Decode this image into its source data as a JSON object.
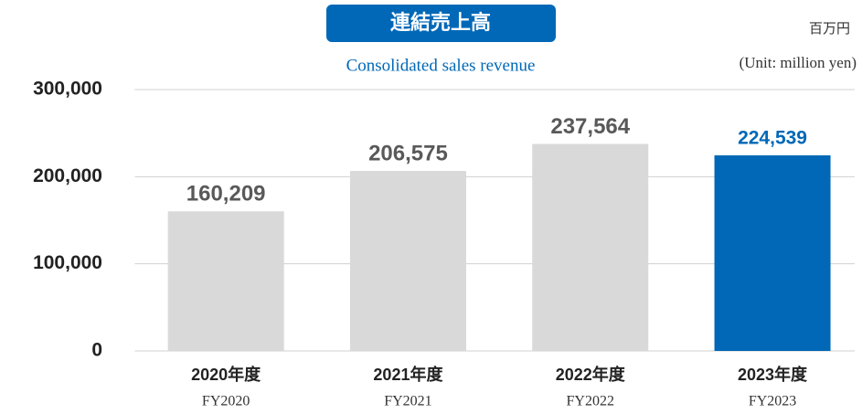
{
  "chart_data": {
    "type": "bar",
    "title": "連結売上高",
    "subtitle": "Consolidated sales revenue",
    "unit": "百万円",
    "unit_en": "(Unit: million yen)",
    "categories": [
      "2020年度",
      "2021年度",
      "2022年度",
      "2023年度"
    ],
    "categories_en": [
      "FY2020",
      "FY2021",
      "FY2022",
      "FY2023"
    ],
    "values": [
      160209,
      206575,
      237564,
      224539
    ],
    "value_labels": [
      "160,209",
      "206,575",
      "237,564",
      "224,539"
    ],
    "colors": [
      "#d9d9d9",
      "#d9d9d9",
      "#d9d9d9",
      "#0068b7"
    ],
    "label_colors": [
      "#595959",
      "#595959",
      "#595959",
      "#0068b7"
    ],
    "ylim": [
      0,
      300000
    ],
    "yticks": [
      0,
      {
        "value": 100000,
        "label": "100,000"
      },
      {
        "value": 200000,
        "label": "200,000"
      },
      {
        "value": 300000,
        "label": "300,000"
      }
    ],
    "grid": true
  }
}
